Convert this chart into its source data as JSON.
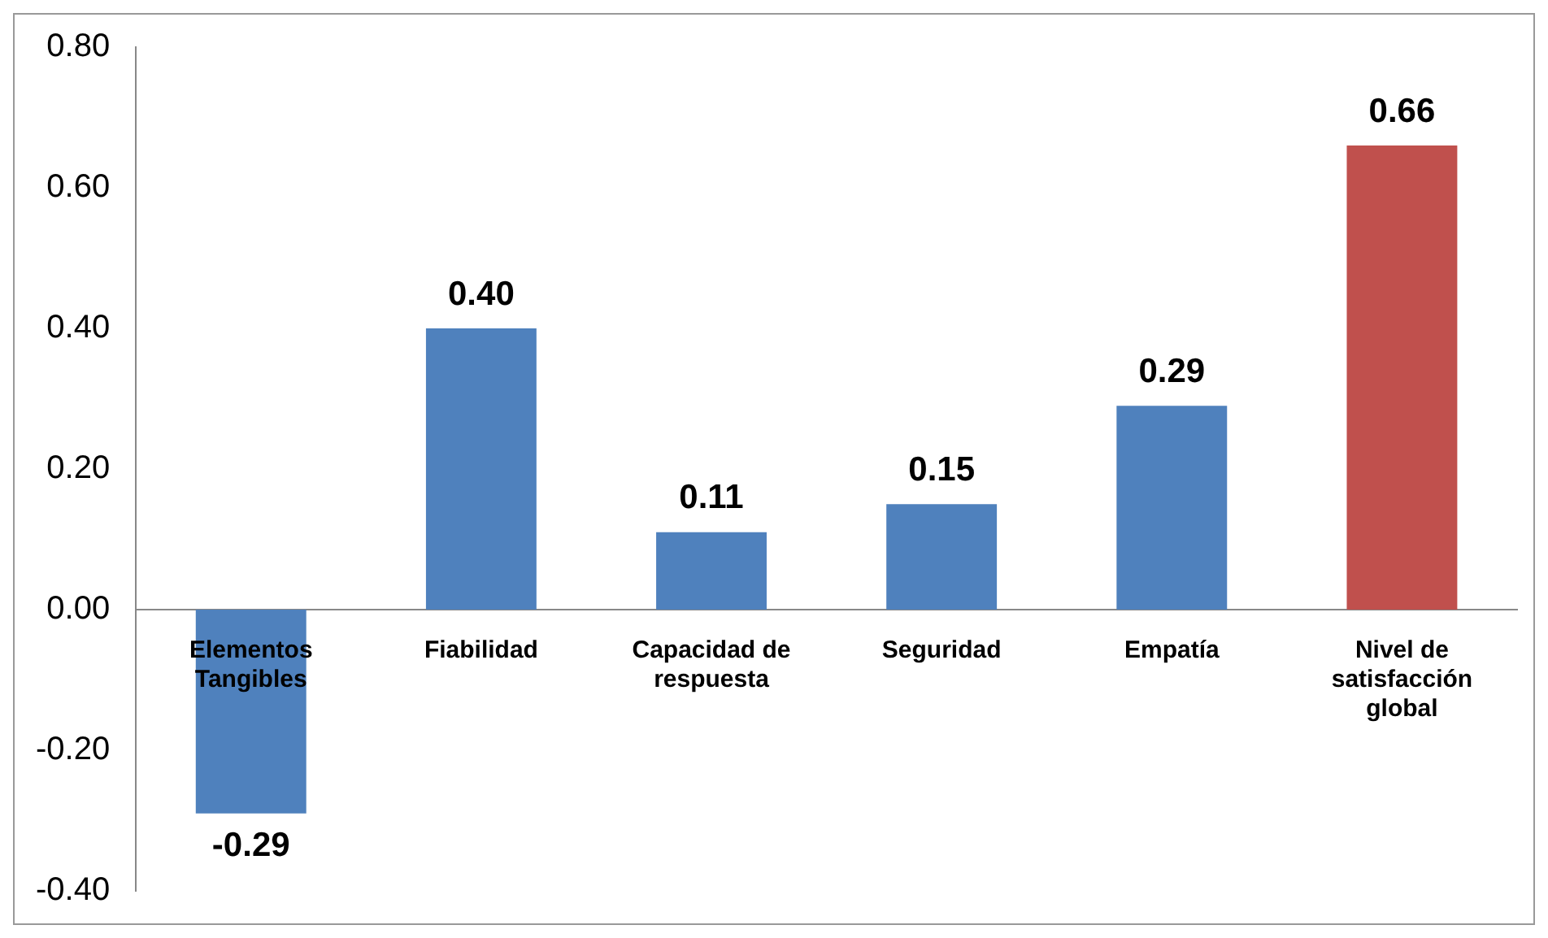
{
  "chart_data": {
    "type": "bar",
    "categories": [
      "Elementos Tangibles",
      "Fiabilidad",
      "Capacidad de respuesta",
      "Seguridad",
      "Empatía",
      "Nivel de satisfacción global"
    ],
    "values": [
      -0.29,
      0.4,
      0.11,
      0.15,
      0.29,
      0.66
    ],
    "colors": [
      "#4f81bd",
      "#4f81bd",
      "#4f81bd",
      "#4f81bd",
      "#4f81bd",
      "#c0504d"
    ],
    "ylim": [
      -0.4,
      0.8
    ],
    "yticks": [
      {
        "value": -0.4,
        "label": "-0.40"
      },
      {
        "value": -0.2,
        "label": "-0.20"
      },
      {
        "value": 0,
        "label": "0.00"
      },
      {
        "value": 0.2,
        "label": "0.20"
      },
      {
        "value": 0.4,
        "label": "0.40"
      },
      {
        "value": 0.6,
        "label": "0.60"
      },
      {
        "value": 0.8,
        "label": "0.80"
      }
    ],
    "value_labels": [
      "-0.29",
      "0.40",
      "0.11",
      "0.15",
      "0.29",
      "0.66"
    ],
    "grid": false,
    "legend": false
  }
}
